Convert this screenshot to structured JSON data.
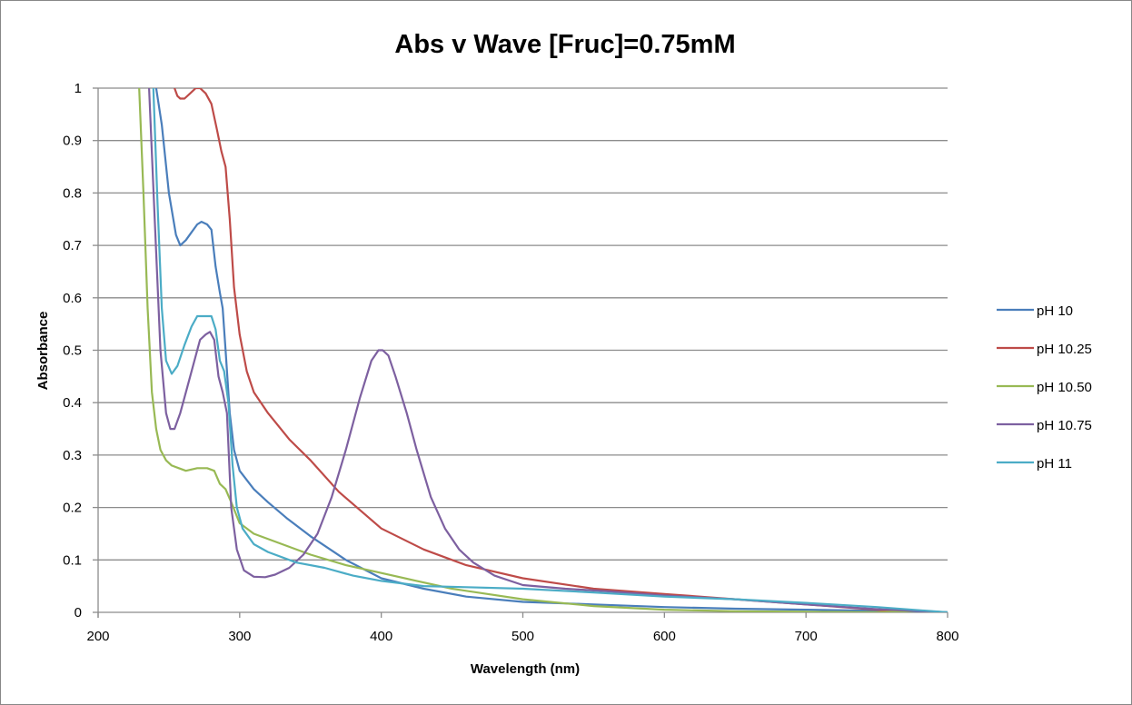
{
  "chart_data": {
    "type": "line",
    "title": "Abs v Wave [Fruc]=0.75mM",
    "xlabel": "Wavelength (nm)",
    "ylabel": "Absorbance",
    "xlim": [
      200,
      800
    ],
    "ylim": [
      0,
      1
    ],
    "xticks": [
      200,
      300,
      400,
      500,
      600,
      700,
      800
    ],
    "xtick_labels": [
      "200",
      "300",
      "400",
      "500",
      "600",
      "700",
      "800"
    ],
    "yticks": [
      0,
      0.1,
      0.2,
      0.3,
      0.4,
      0.5,
      0.6,
      0.7,
      0.8,
      0.9,
      1
    ],
    "ytick_labels": [
      "0",
      "0.1",
      "0.2",
      "0.3",
      "0.4",
      "0.5",
      "0.6",
      "0.7",
      "0.8",
      "0.9",
      "1"
    ],
    "grid": "horizontal",
    "legend_position": "right",
    "series": [
      {
        "name": "pH 10",
        "color": "#4A7EBB",
        "x": [
          241,
          245,
          250,
          255,
          258,
          262,
          266,
          270,
          273,
          277,
          280,
          283,
          286,
          288,
          290,
          293,
          296,
          300,
          310,
          320,
          333,
          350,
          375,
          400,
          430,
          460,
          500,
          550,
          600,
          650,
          700,
          750,
          800
        ],
        "y": [
          1.0,
          0.93,
          0.8,
          0.72,
          0.7,
          0.71,
          0.725,
          0.74,
          0.745,
          0.74,
          0.73,
          0.66,
          0.61,
          0.58,
          0.5,
          0.38,
          0.31,
          0.27,
          0.235,
          0.21,
          0.18,
          0.145,
          0.1,
          0.065,
          0.045,
          0.03,
          0.02,
          0.015,
          0.01,
          0.007,
          0.005,
          0.003,
          0.0
        ]
      },
      {
        "name": "pH 10.25",
        "color": "#BE4B48",
        "x": [
          254,
          256,
          258,
          261,
          265,
          269,
          272,
          276,
          280,
          284,
          287,
          290,
          293,
          296,
          300,
          305,
          310,
          320,
          335,
          350,
          370,
          400,
          430,
          460,
          500,
          550,
          600,
          650,
          700,
          750,
          770
        ],
        "y": [
          1.0,
          0.985,
          0.98,
          0.98,
          0.99,
          1.0,
          1.0,
          0.99,
          0.97,
          0.92,
          0.88,
          0.85,
          0.75,
          0.62,
          0.53,
          0.46,
          0.42,
          0.38,
          0.33,
          0.29,
          0.23,
          0.16,
          0.12,
          0.09,
          0.065,
          0.045,
          0.035,
          0.025,
          0.015,
          0.005,
          0.0
        ]
      },
      {
        "name": "pH 10.50",
        "color": "#98B954",
        "x": [
          229,
          232,
          235,
          238,
          241,
          244,
          248,
          252,
          257,
          262,
          270,
          277,
          282,
          286,
          290,
          294,
          300,
          310,
          330,
          350,
          375,
          400,
          425,
          450,
          475,
          500,
          550,
          600,
          650,
          700,
          750,
          780,
          800
        ],
        "y": [
          1.0,
          0.8,
          0.58,
          0.42,
          0.35,
          0.31,
          0.29,
          0.28,
          0.275,
          0.27,
          0.275,
          0.275,
          0.27,
          0.245,
          0.235,
          0.21,
          0.17,
          0.15,
          0.13,
          0.11,
          0.09,
          0.075,
          0.06,
          0.045,
          0.035,
          0.025,
          0.012,
          0.005,
          0.002,
          0.001,
          0.0,
          0.003,
          0.0
        ]
      },
      {
        "name": "pH 10.75",
        "color": "#7D60A0",
        "x": [
          236,
          240,
          244,
          248,
          251,
          254,
          258,
          263,
          268,
          272,
          276,
          279,
          282,
          285,
          288,
          291,
          294,
          298,
          303,
          310,
          318,
          325,
          335,
          345,
          355,
          365,
          375,
          385,
          393,
          398,
          401,
          405,
          410,
          418,
          425,
          435,
          445,
          455,
          465,
          480,
          500,
          530,
          560,
          600,
          650,
          700,
          750,
          800
        ],
        "y": [
          1.0,
          0.75,
          0.5,
          0.38,
          0.35,
          0.35,
          0.38,
          0.43,
          0.48,
          0.52,
          0.53,
          0.535,
          0.52,
          0.45,
          0.42,
          0.38,
          0.2,
          0.12,
          0.08,
          0.068,
          0.067,
          0.072,
          0.085,
          0.11,
          0.15,
          0.22,
          0.31,
          0.41,
          0.48,
          0.5,
          0.5,
          0.49,
          0.45,
          0.38,
          0.31,
          0.22,
          0.16,
          0.12,
          0.095,
          0.07,
          0.052,
          0.045,
          0.04,
          0.032,
          0.025,
          0.015,
          0.006,
          0.0
        ]
      },
      {
        "name": "pH 11",
        "color": "#4BACC6",
        "x": [
          239,
          242,
          245,
          248,
          252,
          256,
          261,
          266,
          270,
          274,
          277,
          280,
          283,
          286,
          289,
          292,
          295,
          298,
          302,
          310,
          320,
          340,
          360,
          380,
          400,
          430,
          460,
          500,
          550,
          600,
          650,
          700,
          750,
          800
        ],
        "y": [
          1.0,
          0.78,
          0.58,
          0.48,
          0.455,
          0.47,
          0.51,
          0.545,
          0.565,
          0.565,
          0.565,
          0.565,
          0.54,
          0.48,
          0.46,
          0.4,
          0.28,
          0.2,
          0.16,
          0.13,
          0.115,
          0.095,
          0.085,
          0.07,
          0.06,
          0.05,
          0.048,
          0.045,
          0.038,
          0.03,
          0.025,
          0.018,
          0.01,
          0.0
        ]
      }
    ]
  }
}
